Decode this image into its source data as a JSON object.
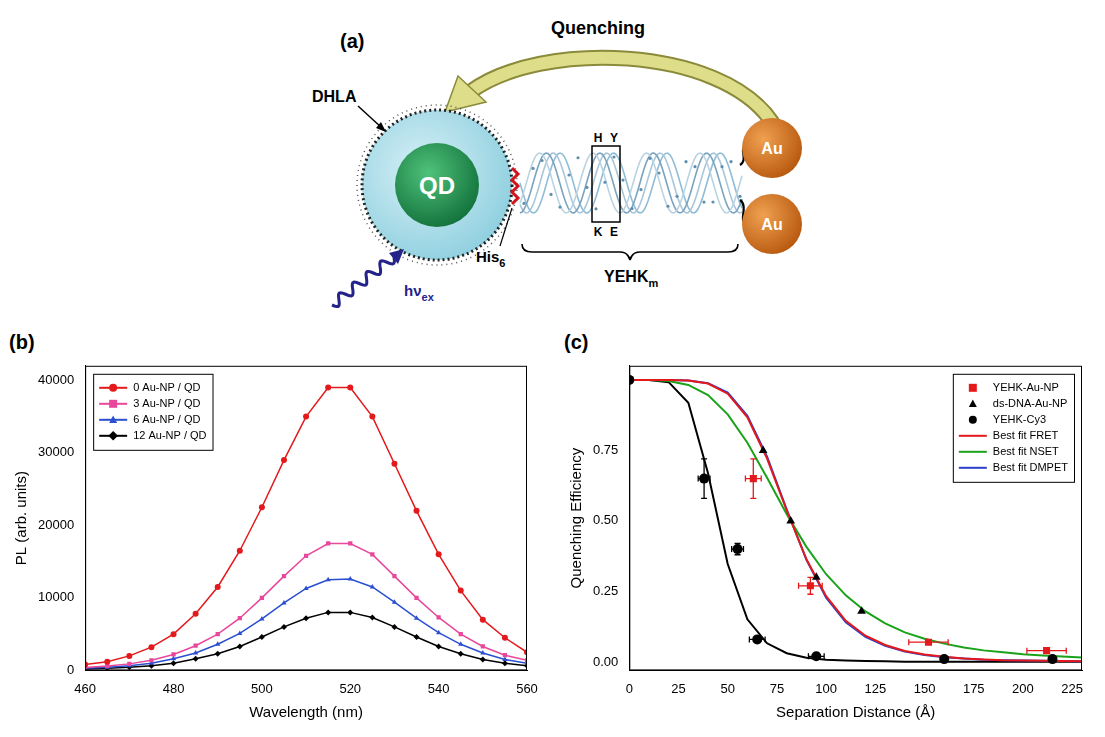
{
  "diagram": {
    "panel": "(a)",
    "arrow_label": "Quenching",
    "shell_label": "DHLA",
    "core_label": "QD",
    "linker_label": {
      "text": "His",
      "sub": "6"
    },
    "peptide_label": {
      "text": "YEHK",
      "sub": "m"
    },
    "residues_top": [
      "H",
      "Y"
    ],
    "residues_bottom": [
      "K",
      "E"
    ],
    "particles": [
      "Au",
      "Au"
    ],
    "excitation_label": {
      "text": "hν",
      "sub": "ex"
    }
  },
  "chart_data": [
    {
      "panel": "(b)",
      "type": "line",
      "x_label": "Wavelength (nm)",
      "y_label": "PL (arb. units)",
      "x": [
        460,
        465,
        470,
        475,
        480,
        485,
        490,
        495,
        500,
        505,
        510,
        515,
        520,
        525,
        530,
        535,
        540,
        545,
        550,
        555,
        560
      ],
      "xlim": [
        460,
        560
      ],
      "xticks": [
        460,
        480,
        500,
        520,
        540,
        560
      ],
      "ylim": [
        0,
        42000
      ],
      "yticks": [
        0,
        10000,
        20000,
        30000,
        40000
      ],
      "grid": false,
      "legend": "upper left",
      "series": [
        {
          "name": "0 Au-NP / QD",
          "color": "#e3191c",
          "marker": "circle",
          "values": [
            800,
            1200,
            2000,
            3200,
            5000,
            7800,
            11500,
            16500,
            22500,
            29000,
            35000,
            39000,
            39000,
            35000,
            28500,
            22000,
            16000,
            11000,
            7000,
            4500,
            2500
          ]
        },
        {
          "name": "3 Au-NP / QD",
          "color": "#e8479b",
          "marker": "square",
          "values": [
            400,
            600,
            900,
            1400,
            2200,
            3400,
            5000,
            7200,
            10000,
            13000,
            15800,
            17500,
            17500,
            16000,
            13000,
            10000,
            7300,
            5000,
            3300,
            2100,
            1400
          ]
        },
        {
          "name": "6 Au-NP / QD",
          "color": "#2b4fd1",
          "marker": "triangle",
          "values": [
            300,
            450,
            650,
            1000,
            1600,
            2400,
            3600,
            5100,
            7100,
            9300,
            11300,
            12500,
            12600,
            11500,
            9400,
            7200,
            5200,
            3600,
            2400,
            1500,
            1000
          ]
        },
        {
          "name": "12 Au-NP / QD",
          "color": "#000000",
          "marker": "diamond",
          "values": [
            200,
            300,
            450,
            650,
            1000,
            1600,
            2300,
            3300,
            4600,
            6000,
            7200,
            8000,
            8000,
            7300,
            6000,
            4600,
            3300,
            2300,
            1500,
            1000,
            650
          ]
        }
      ]
    },
    {
      "panel": "(c)",
      "type": "scatter",
      "x_label": "Separation Distance (Å)",
      "y_label": "Quenching Efficiency",
      "xlim": [
        0,
        230
      ],
      "xticks": [
        0,
        25,
        50,
        75,
        100,
        125,
        150,
        175,
        200,
        225
      ],
      "ylim": [
        -0.03,
        1.05
      ],
      "yticks": [
        {
          "value": 0,
          "label": "0.00"
        },
        {
          "value": 0.25,
          "label": "0.25"
        },
        {
          "value": 0.5,
          "label": "0.50"
        },
        {
          "value": 0.75,
          "label": "0.75"
        }
      ],
      "grid": false,
      "legend": "upper right",
      "series": [
        {
          "name": "YEHK-Au-NP",
          "color": "#e3191c",
          "marker": "square",
          "x": [
            63,
            92,
            152,
            212
          ],
          "values": [
            0.65,
            0.27,
            0.07,
            0.04
          ],
          "x_err": [
            4,
            6,
            10,
            10
          ],
          "y_err": [
            0.07,
            0.03,
            null,
            null
          ]
        },
        {
          "name": "ds-DNA-Au-NP",
          "color": "#000000",
          "marker": "triangle",
          "x": [
            68,
            82,
            95,
            118
          ],
          "values": [
            0.75,
            0.5,
            0.3,
            0.18
          ]
        },
        {
          "name": "YEHK-Cy3",
          "color": "#000000",
          "marker": "circle",
          "x": [
            0,
            38,
            55,
            65,
            95,
            160,
            215
          ],
          "values": [
            1.0,
            0.65,
            0.4,
            0.08,
            0.02,
            0.01,
            0.01
          ],
          "x_err": [
            null,
            3,
            3,
            4,
            4,
            null,
            null
          ],
          "y_err": [
            null,
            0.07,
            0.02,
            null,
            null,
            null,
            null
          ]
        },
        {
          "name": "Best fit FRET",
          "type": "line",
          "color": "#e3191c",
          "x": [
            0,
            10,
            20,
            30,
            40,
            50,
            60,
            70,
            80,
            90,
            100,
            110,
            120,
            130,
            140,
            150,
            160,
            170,
            180,
            190,
            200,
            210,
            220,
            230
          ],
          "values": [
            1.0,
            1.0,
            1.0,
            0.998,
            0.987,
            0.951,
            0.867,
            0.721,
            0.537,
            0.364,
            0.233,
            0.146,
            0.093,
            0.06,
            0.039,
            0.026,
            0.018,
            0.012,
            0.009,
            0.006,
            0.005,
            0.004,
            0.003,
            0.002
          ]
        },
        {
          "name": "Best fit NSET",
          "type": "line",
          "color": "#1aa31a",
          "x": [
            0,
            10,
            20,
            30,
            40,
            50,
            60,
            70,
            80,
            90,
            100,
            110,
            120,
            130,
            140,
            150,
            160,
            170,
            180,
            190,
            200,
            210,
            220,
            230
          ],
          "values": [
            1.0,
            1.0,
            0.996,
            0.982,
            0.946,
            0.878,
            0.777,
            0.653,
            0.524,
            0.408,
            0.311,
            0.236,
            0.179,
            0.137,
            0.105,
            0.082,
            0.065,
            0.051,
            0.041,
            0.034,
            0.027,
            0.023,
            0.019,
            0.016
          ]
        },
        {
          "name": "Best fit DMPET",
          "type": "line",
          "color": "#2b3fcc",
          "x": [
            0,
            10,
            20,
            30,
            40,
            50,
            60,
            70,
            80,
            90,
            100,
            110,
            120,
            130,
            140,
            150,
            160,
            170,
            180,
            190,
            200,
            210,
            220,
            230
          ],
          "values": [
            1.0,
            1.0,
            1.0,
            0.998,
            0.988,
            0.955,
            0.873,
            0.728,
            0.54,
            0.362,
            0.228,
            0.141,
            0.089,
            0.057,
            0.037,
            0.025,
            0.017,
            0.012,
            0.008,
            0.006,
            0.005,
            0.004,
            0.003,
            0.002
          ]
        },
        {
          "type": "line",
          "color": "#000000",
          "x": [
            0,
            10,
            20,
            30,
            40,
            50,
            60,
            70,
            80,
            90,
            100,
            110,
            120,
            130,
            140,
            150,
            160,
            170,
            180,
            190,
            200,
            210,
            220,
            230
          ],
          "values": [
            1.0,
            1.0,
            0.992,
            0.919,
            0.669,
            0.347,
            0.151,
            0.066,
            0.031,
            0.015,
            0.008,
            0.005,
            0.003,
            0.002,
            0.001,
            0.001,
            0.001,
            0.001,
            0.001,
            0.001,
            0.001,
            0.001,
            0.001,
            0.001
          ]
        }
      ]
    }
  ]
}
